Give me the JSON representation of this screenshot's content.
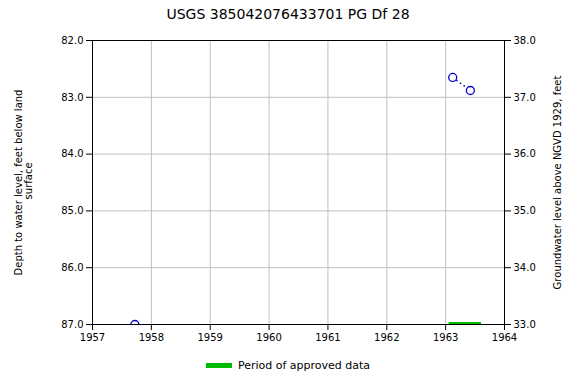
{
  "chart_data": {
    "type": "scatter",
    "title": "USGS 385042076433701 PG Df  28",
    "y_label": "Depth to water level, feet below land\n surface",
    "y2_label": "Groundwater level above NGVD 1929, feet",
    "xlim": [
      1957,
      1964
    ],
    "xticks": [
      1957,
      1958,
      1959,
      1960,
      1961,
      1962,
      1963,
      1964
    ],
    "ylim": [
      87.0,
      82.0
    ],
    "yticks": [
      {
        "value": 82.0,
        "label": "82.0"
      },
      {
        "value": 83.0,
        "label": "83.0"
      },
      {
        "value": 84.0,
        "label": "84.0"
      },
      {
        "value": 85.0,
        "label": "85.0"
      },
      {
        "value": 86.0,
        "label": "86.0"
      },
      {
        "value": 87.0,
        "label": "87.0"
      }
    ],
    "y2lim": [
      33.0,
      38.0
    ],
    "y2ticks": [
      {
        "value": 38.0,
        "label": "38.0"
      },
      {
        "value": 37.0,
        "label": "37.0"
      },
      {
        "value": 36.0,
        "label": "36.0"
      },
      {
        "value": 35.0,
        "label": "35.0"
      },
      {
        "value": 34.0,
        "label": "34.0"
      },
      {
        "value": 33.0,
        "label": "33.0"
      }
    ],
    "grid": true,
    "legend": "bottom",
    "series": [
      {
        "type": "scatter",
        "marker": "open_circle",
        "color": "#0000cc",
        "x": [
          1957.72,
          1963.12,
          1963.42
        ],
        "values": [
          87.0,
          82.65,
          82.88
        ]
      },
      {
        "type": "line",
        "line_style": "dotted",
        "color": "#0000cc",
        "x": [
          1963.12,
          1963.42
        ],
        "values": [
          82.65,
          82.88
        ]
      },
      {
        "type": "line",
        "line_style": "solid",
        "name": "Period of approved data",
        "color": "#00bb00",
        "x": [
          1963.05,
          1963.6
        ],
        "values": [
          87.0,
          87.0
        ]
      }
    ]
  }
}
